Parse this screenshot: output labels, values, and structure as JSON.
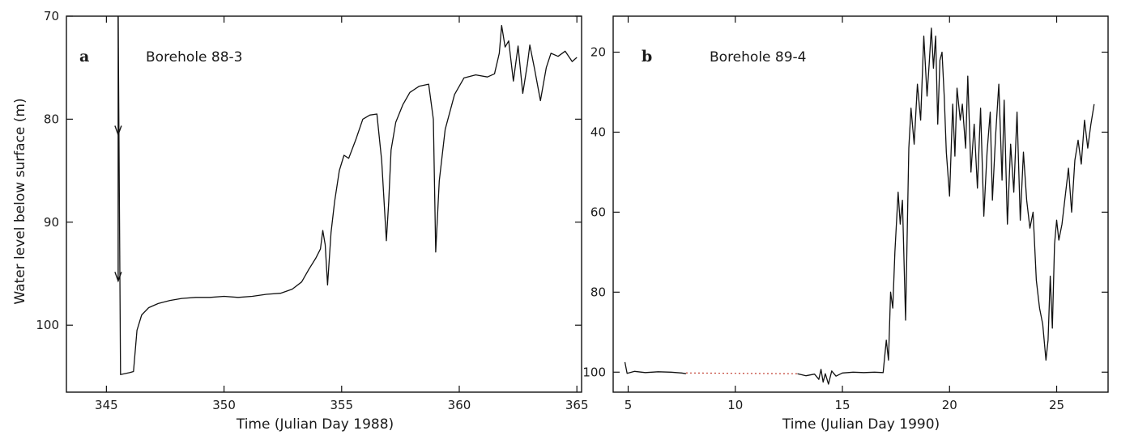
{
  "chart_data": [
    {
      "type": "line",
      "panel": "a",
      "title": "Borehole 88-3",
      "xlabel": "Time (Julian Day 1988)",
      "ylabel": "Water level below surface (m)",
      "xlim": [
        343.3,
        365.2
      ],
      "ylim": [
        70,
        106.5
      ],
      "y_inverted": true,
      "xticks": [
        345,
        350,
        355,
        360,
        365
      ],
      "yticks": [
        70,
        80,
        90,
        100
      ],
      "arrows": [
        {
          "x": 345.5,
          "y_from": 70,
          "y_to": 81.5
        },
        {
          "x": 345.5,
          "y_from": 81.5,
          "y_to": 95.7
        }
      ],
      "series": [
        {
          "x": [
            345.5,
            345.6,
            346.0,
            346.15,
            346.3,
            346.5,
            346.8,
            347.2,
            347.7,
            348.2,
            348.8,
            349.4,
            350.0,
            350.6,
            351.2,
            351.8,
            352.4,
            352.9,
            353.3,
            353.6,
            353.9,
            354.1,
            354.2,
            354.3,
            354.4,
            354.55,
            354.7,
            354.9,
            355.1,
            355.3,
            355.6,
            355.9,
            356.2,
            356.5,
            356.7,
            356.9,
            357.0,
            357.1,
            357.3,
            357.6,
            357.9,
            358.3,
            358.7,
            358.9,
            359.0,
            359.15,
            359.4,
            359.8,
            360.2,
            360.7,
            361.2,
            361.5,
            361.7,
            361.8,
            361.95,
            362.1,
            362.3,
            362.5,
            362.7,
            362.9,
            363.0,
            363.2,
            363.45,
            363.7,
            363.9,
            364.2,
            364.5,
            364.8,
            365.0
          ],
          "y": [
            70,
            104.8,
            104.6,
            104.5,
            100.5,
            99.0,
            98.3,
            97.9,
            97.6,
            97.4,
            97.3,
            97.3,
            97.2,
            97.3,
            97.2,
            97.0,
            96.9,
            96.5,
            95.8,
            94.6,
            93.5,
            92.6,
            90.8,
            92.2,
            96.1,
            91.0,
            88.0,
            85.0,
            83.5,
            83.8,
            82.0,
            80.0,
            79.6,
            79.5,
            84.0,
            91.8,
            88.0,
            83.0,
            80.3,
            78.6,
            77.4,
            76.8,
            76.6,
            80.0,
            92.9,
            86.0,
            81.0,
            77.6,
            76.0,
            75.7,
            75.9,
            75.6,
            73.6,
            70.9,
            73.0,
            72.4,
            76.3,
            72.9,
            77.5,
            74.6,
            72.8,
            75.1,
            78.2,
            75.0,
            73.6,
            73.9,
            73.4,
            74.4,
            74.0
          ]
        }
      ]
    },
    {
      "type": "line",
      "panel": "b",
      "title": "Borehole 89-4",
      "xlabel": "Time (Julian Day 1990)",
      "ylabel": "",
      "xlim": [
        4.3,
        27.4
      ],
      "ylim": [
        11,
        105
      ],
      "y_inverted": true,
      "xticks": [
        5,
        10,
        15,
        20,
        25
      ],
      "yticks": [
        20,
        40,
        60,
        80,
        100
      ],
      "series": [
        {
          "x": [
            4.85,
            4.95,
            5.3,
            5.8,
            6.4,
            7.0,
            7.5,
            7.7
          ],
          "y": [
            97.5,
            100.3,
            99.8,
            100.1,
            99.9,
            100.0,
            100.2,
            100.4
          ]
        },
        {
          "x": [
            12.9,
            13.3,
            13.7,
            13.9,
            14.0,
            14.1,
            14.2,
            14.35,
            14.5,
            14.7,
            15.0,
            15.5,
            16.0,
            16.5,
            16.9,
            17.05,
            17.15,
            17.25,
            17.35,
            17.45,
            17.6,
            17.7,
            17.8,
            17.95,
            18.1,
            18.2,
            18.35,
            18.5,
            18.65,
            18.8,
            18.95,
            19.05,
            19.15,
            19.25,
            19.35,
            19.45,
            19.55,
            19.65,
            19.75,
            19.85,
            20.0,
            20.15,
            20.25,
            20.35,
            20.5,
            20.6,
            20.75,
            20.85,
            21.0,
            21.15,
            21.3,
            21.45,
            21.6,
            21.75,
            21.9,
            22.0,
            22.15,
            22.3,
            22.45,
            22.55,
            22.7,
            22.85,
            23.0,
            23.15,
            23.3,
            23.45,
            23.6,
            23.75,
            23.9,
            24.05,
            24.2,
            24.35,
            24.5,
            24.6,
            24.7,
            24.8,
            24.9,
            25.0,
            25.1,
            25.25,
            25.4,
            25.55,
            25.7,
            25.85,
            26.0,
            26.15,
            26.3,
            26.45,
            26.6,
            26.75
          ],
          "y": [
            100.4,
            100.9,
            100.5,
            101.8,
            99.3,
            102.5,
            100.4,
            103.0,
            99.7,
            101.0,
            100.2,
            100.0,
            100.1,
            100.0,
            100.1,
            92.0,
            97.0,
            80.0,
            84.0,
            70.0,
            55.0,
            63.0,
            57.0,
            87.0,
            44.0,
            34.0,
            43.0,
            28.0,
            37.0,
            16.0,
            31.0,
            23.0,
            14.0,
            24.0,
            16.0,
            38.0,
            22.0,
            20.0,
            31.0,
            45.0,
            56.0,
            33.0,
            46.0,
            29.0,
            37.0,
            33.0,
            44.0,
            26.0,
            50.0,
            38.0,
            54.0,
            34.0,
            61.0,
            45.0,
            35.0,
            57.0,
            41.0,
            28.0,
            52.0,
            32.0,
            63.0,
            43.0,
            55.0,
            35.0,
            62.0,
            45.0,
            57.0,
            64.0,
            60.0,
            77.0,
            84.0,
            88.0,
            97.0,
            92.0,
            76.0,
            89.0,
            68.0,
            62.0,
            67.0,
            63.0,
            56.0,
            49.0,
            60.0,
            47.0,
            42.0,
            48.0,
            37.0,
            44.0,
            38.0,
            33.0
          ]
        }
      ],
      "gaps": [
        {
          "x": [
            7.7,
            12.9
          ],
          "y": [
            100.2,
            100.4
          ]
        }
      ]
    }
  ]
}
